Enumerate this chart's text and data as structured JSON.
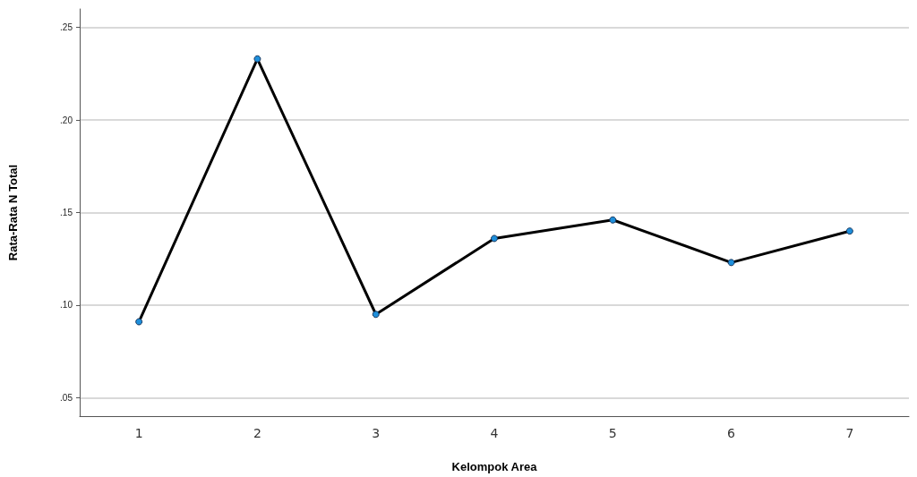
{
  "chart_data": {
    "type": "line",
    "xlabel": "Kelompok Area",
    "ylabel": "Rata-Rata N Total",
    "categories": [
      "1",
      "2",
      "3",
      "4",
      "5",
      "6",
      "7"
    ],
    "series": [
      {
        "color": "#000000",
        "values": [
          0.091,
          0.233,
          0.095,
          0.136,
          0.146,
          0.123,
          0.14
        ]
      }
    ],
    "ylim": [
      0.04,
      0.26
    ],
    "yticks": [
      {
        "value": 0.05,
        "label": ".05"
      },
      {
        "value": 0.1,
        "label": ".10"
      },
      {
        "value": 0.15,
        "label": ".15"
      },
      {
        "value": 0.2,
        "label": ".20"
      },
      {
        "value": 0.25,
        "label": ".25"
      }
    ],
    "grid": "y",
    "marker": "circle",
    "line_style": "solid"
  }
}
